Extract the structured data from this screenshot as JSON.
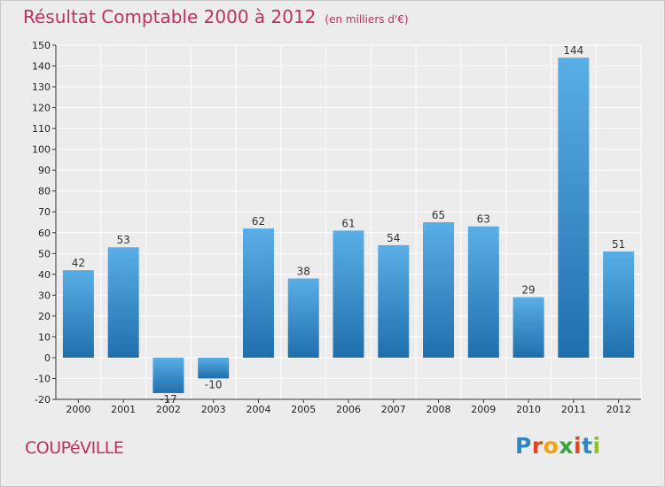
{
  "header": {
    "title": "Résultat Comptable 2000 à 2012",
    "unit": "(en milliers d'€)"
  },
  "footer": {
    "town": "COUPéVILLE",
    "logo_letters": [
      "P",
      "r",
      "o",
      "x",
      "i",
      "t",
      "i"
    ],
    "logo_colors": [
      "#2f86c4",
      "#e2461e",
      "#f2a313",
      "#3aa53a",
      "#e2461e",
      "#2f86c4",
      "#8fbf2c"
    ]
  },
  "colors": {
    "title": "#c0305e",
    "bar_light": "#5aaee6",
    "bar_dark": "#1f6fad",
    "grid": "#ffffff",
    "plot_bg": "#ececec"
  },
  "chart_data": {
    "type": "bar",
    "title": "Résultat Comptable 2000 à 2012",
    "subtitle": "(en milliers d'€)",
    "categories": [
      "2000",
      "2001",
      "2002",
      "2003",
      "2004",
      "2005",
      "2006",
      "2007",
      "2008",
      "2009",
      "2010",
      "2011",
      "2012"
    ],
    "values": [
      42,
      53,
      -17,
      -10,
      62,
      38,
      61,
      54,
      65,
      63,
      29,
      144,
      51
    ],
    "value_labels": [
      "42",
      "53",
      "-17",
      "-10",
      "62",
      "38",
      "61",
      "54",
      "65",
      "63",
      "29",
      "144",
      "51"
    ],
    "ylim": [
      -20,
      150
    ],
    "yticks": [
      -20,
      -10,
      0,
      10,
      20,
      30,
      40,
      50,
      60,
      70,
      80,
      90,
      100,
      110,
      120,
      130,
      140,
      150
    ],
    "grid": true
  }
}
